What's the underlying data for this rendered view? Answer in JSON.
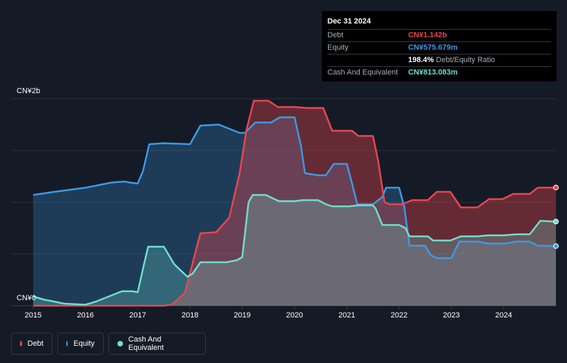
{
  "tooltip": {
    "date": "Dec 31 2024",
    "rows": [
      {
        "label": "Debt",
        "value": "CN¥1.142b",
        "color": "#e8474f"
      },
      {
        "label": "Equity",
        "value": "CN¥575.679m",
        "color": "#3a9be8"
      },
      {
        "label": "",
        "value": "198.4%",
        "sub": "Debt/Equity Ratio",
        "color": "#ffffff"
      },
      {
        "label": "Cash And Equivalent",
        "value": "CN¥813.083m",
        "color": "#6fe0cd"
      }
    ]
  },
  "legend": [
    {
      "label": "Debt",
      "color": "#e8474f"
    },
    {
      "label": "Equity",
      "color": "#3a9be8"
    },
    {
      "label": "Cash And Equivalent",
      "color": "#6fe0cd"
    }
  ],
  "chart_data": {
    "type": "area",
    "y_unit": "CN¥",
    "ylim": [
      0,
      2.0
    ],
    "y_tick_labels": [
      {
        "value": 2.0,
        "label": "CN¥2b"
      },
      {
        "value": 0,
        "label": "CN¥0"
      }
    ],
    "xlim": [
      2015.0,
      2025.0
    ],
    "x_ticks": [
      "2015",
      "2016",
      "2017",
      "2018",
      "2019",
      "2020",
      "2021",
      "2022",
      "2023",
      "2024"
    ],
    "grid": true,
    "series": [
      {
        "name": "Debt",
        "color": "#e8474f",
        "points": [
          [
            2015.0,
            0
          ],
          [
            2016.0,
            0
          ],
          [
            2017.0,
            0
          ],
          [
            2017.5,
            0
          ],
          [
            2017.65,
            0.01
          ],
          [
            2017.9,
            0.12
          ],
          [
            2018.2,
            0.7
          ],
          [
            2018.5,
            0.71
          ],
          [
            2018.75,
            0.85
          ],
          [
            2018.95,
            1.28
          ],
          [
            2019.08,
            1.7
          ],
          [
            2019.22,
            1.98
          ],
          [
            2019.5,
            1.98
          ],
          [
            2019.68,
            1.92
          ],
          [
            2020.0,
            1.92
          ],
          [
            2020.25,
            1.91
          ],
          [
            2020.55,
            1.91
          ],
          [
            2020.72,
            1.69
          ],
          [
            2021.1,
            1.69
          ],
          [
            2021.22,
            1.64
          ],
          [
            2021.5,
            1.64
          ],
          [
            2021.6,
            1.4
          ],
          [
            2021.72,
            1.0
          ],
          [
            2021.82,
            0.98
          ],
          [
            2022.05,
            0.98
          ],
          [
            2022.25,
            1.02
          ],
          [
            2022.55,
            1.02
          ],
          [
            2022.72,
            1.1
          ],
          [
            2022.98,
            1.1
          ],
          [
            2023.18,
            0.95
          ],
          [
            2023.5,
            0.95
          ],
          [
            2023.72,
            1.03
          ],
          [
            2023.98,
            1.03
          ],
          [
            2024.18,
            1.08
          ],
          [
            2024.5,
            1.08
          ],
          [
            2024.65,
            1.14
          ],
          [
            2025.0,
            1.142
          ]
        ]
      },
      {
        "name": "Equity",
        "color": "#3a9be8",
        "points": [
          [
            2015.0,
            1.07
          ],
          [
            2015.4,
            1.1
          ],
          [
            2016.0,
            1.14
          ],
          [
            2016.5,
            1.19
          ],
          [
            2016.75,
            1.2
          ],
          [
            2016.85,
            1.19
          ],
          [
            2017.0,
            1.18
          ],
          [
            2017.1,
            1.3
          ],
          [
            2017.22,
            1.56
          ],
          [
            2017.5,
            1.57
          ],
          [
            2018.0,
            1.56
          ],
          [
            2018.2,
            1.74
          ],
          [
            2018.55,
            1.75
          ],
          [
            2018.75,
            1.71
          ],
          [
            2018.95,
            1.67
          ],
          [
            2019.05,
            1.67
          ],
          [
            2019.25,
            1.77
          ],
          [
            2019.55,
            1.77
          ],
          [
            2019.72,
            1.82
          ],
          [
            2020.0,
            1.82
          ],
          [
            2020.12,
            1.55
          ],
          [
            2020.2,
            1.28
          ],
          [
            2020.45,
            1.26
          ],
          [
            2020.6,
            1.26
          ],
          [
            2020.75,
            1.37
          ],
          [
            2021.0,
            1.37
          ],
          [
            2021.1,
            1.18
          ],
          [
            2021.2,
            0.98
          ],
          [
            2021.5,
            0.98
          ],
          [
            2021.68,
            1.05
          ],
          [
            2021.75,
            1.14
          ],
          [
            2022.0,
            1.14
          ],
          [
            2022.1,
            0.95
          ],
          [
            2022.2,
            0.58
          ],
          [
            2022.4,
            0.58
          ],
          [
            2022.5,
            0.58
          ],
          [
            2022.6,
            0.49
          ],
          [
            2022.72,
            0.46
          ],
          [
            2023.0,
            0.46
          ],
          [
            2023.15,
            0.62
          ],
          [
            2023.5,
            0.62
          ],
          [
            2023.72,
            0.6
          ],
          [
            2024.0,
            0.6
          ],
          [
            2024.25,
            0.62
          ],
          [
            2024.5,
            0.62
          ],
          [
            2024.65,
            0.58
          ],
          [
            2025.0,
            0.576
          ]
        ]
      },
      {
        "name": "Cash And Equivalent",
        "color": "#6fe0cd",
        "points": [
          [
            2015.0,
            0.09
          ],
          [
            2015.2,
            0.06
          ],
          [
            2015.6,
            0.02
          ],
          [
            2016.0,
            0.01
          ],
          [
            2016.2,
            0.04
          ],
          [
            2016.5,
            0.1
          ],
          [
            2016.7,
            0.14
          ],
          [
            2016.9,
            0.14
          ],
          [
            2017.0,
            0.13
          ],
          [
            2017.12,
            0.4
          ],
          [
            2017.2,
            0.57
          ],
          [
            2017.5,
            0.57
          ],
          [
            2017.7,
            0.4
          ],
          [
            2017.95,
            0.28
          ],
          [
            2018.05,
            0.31
          ],
          [
            2018.2,
            0.42
          ],
          [
            2018.3,
            0.42
          ],
          [
            2018.7,
            0.42
          ],
          [
            2018.9,
            0.44
          ],
          [
            2019.0,
            0.47
          ],
          [
            2019.12,
            1.0
          ],
          [
            2019.2,
            1.07
          ],
          [
            2019.45,
            1.07
          ],
          [
            2019.7,
            1.01
          ],
          [
            2020.0,
            1.01
          ],
          [
            2020.15,
            1.02
          ],
          [
            2020.45,
            1.02
          ],
          [
            2020.6,
            0.98
          ],
          [
            2020.72,
            0.96
          ],
          [
            2021.05,
            0.96
          ],
          [
            2021.22,
            0.97
          ],
          [
            2021.5,
            0.97
          ],
          [
            2021.55,
            0.94
          ],
          [
            2021.68,
            0.78
          ],
          [
            2022.0,
            0.78
          ],
          [
            2022.12,
            0.75
          ],
          [
            2022.2,
            0.67
          ],
          [
            2022.55,
            0.67
          ],
          [
            2022.65,
            0.63
          ],
          [
            2022.98,
            0.63
          ],
          [
            2023.18,
            0.67
          ],
          [
            2023.5,
            0.67
          ],
          [
            2023.7,
            0.68
          ],
          [
            2024.0,
            0.68
          ],
          [
            2024.25,
            0.69
          ],
          [
            2024.5,
            0.69
          ],
          [
            2024.7,
            0.82
          ],
          [
            2025.0,
            0.813
          ]
        ]
      }
    ]
  }
}
